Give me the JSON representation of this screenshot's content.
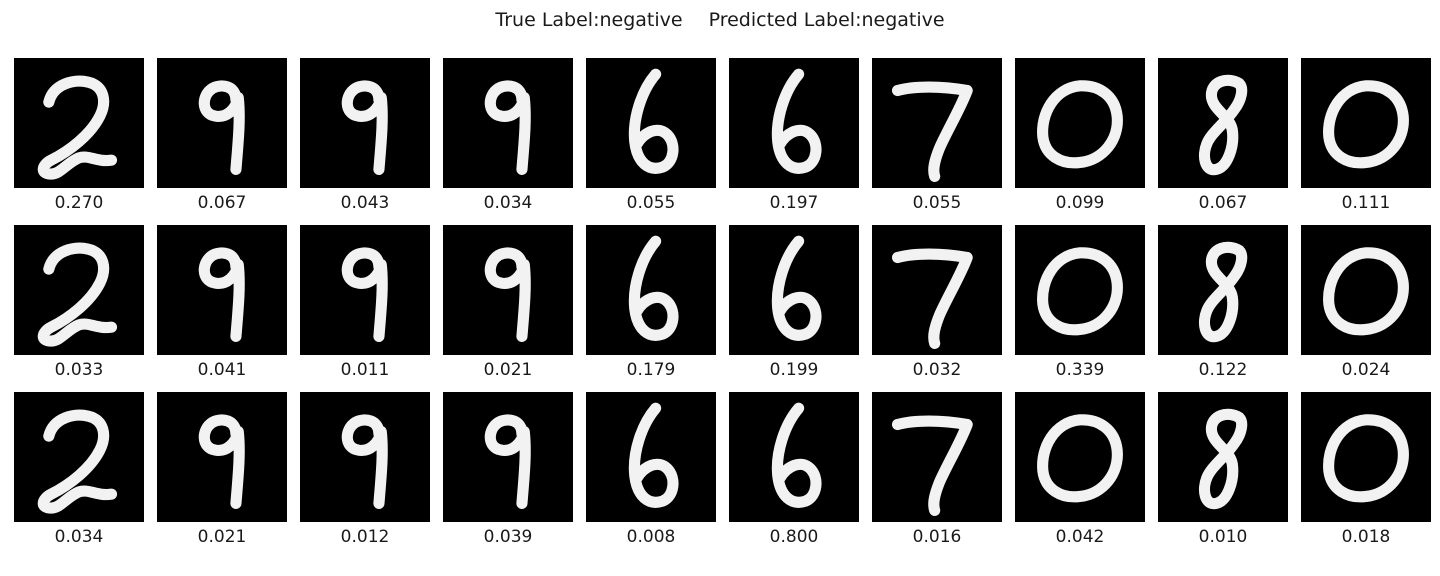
{
  "title": {
    "true_label": "True Label:negative",
    "predicted_label": "Predicted Label:negative"
  },
  "digits": [
    "2",
    "9",
    "9",
    "9",
    "6",
    "6",
    "7",
    "0",
    "8",
    "0"
  ],
  "rows": [
    {
      "scores": [
        "0.270",
        "0.067",
        "0.043",
        "0.034",
        "0.055",
        "0.197",
        "0.055",
        "0.099",
        "0.067",
        "0.111"
      ]
    },
    {
      "scores": [
        "0.033",
        "0.041",
        "0.011",
        "0.021",
        "0.179",
        "0.199",
        "0.032",
        "0.339",
        "0.122",
        "0.024"
      ]
    },
    {
      "scores": [
        "0.034",
        "0.021",
        "0.012",
        "0.039",
        "0.008",
        "0.800",
        "0.016",
        "0.042",
        "0.010",
        "0.018"
      ]
    }
  ],
  "colors": {
    "background": "#000000",
    "stroke": "#f2f2f2"
  }
}
